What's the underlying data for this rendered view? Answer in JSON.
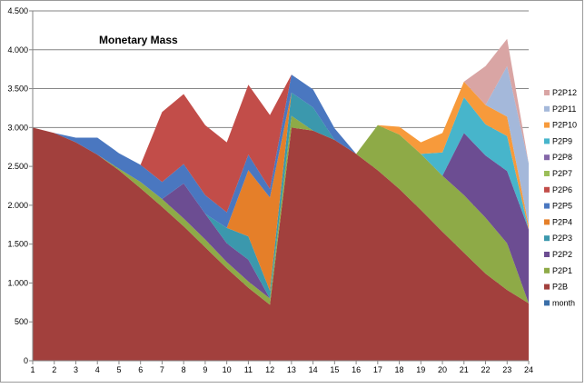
{
  "chart_data": {
    "type": "area",
    "stacked": true,
    "title": "Monetary Mass",
    "xlabel": "",
    "ylabel": "",
    "x": [
      1,
      2,
      3,
      4,
      5,
      6,
      7,
      8,
      9,
      10,
      11,
      12,
      13,
      14,
      15,
      16,
      17,
      18,
      19,
      20,
      21,
      22,
      23,
      24
    ],
    "ylim": [
      0,
      4500
    ],
    "yticks": [
      0,
      500,
      1000,
      1500,
      2000,
      2500,
      3000,
      3500,
      4000,
      4500
    ],
    "ytick_labels": [
      "0",
      "500",
      "1.000",
      "1.500",
      "2.000",
      "2.500",
      "3.000",
      "3.500",
      "4.000",
      "4.500"
    ],
    "grid": "horizontal",
    "legend_position": "right",
    "series": [
      {
        "name": "month",
        "color": "#3a6ea8",
        "values": [
          0,
          0,
          0,
          0,
          0,
          0,
          0,
          0,
          0,
          0,
          0,
          0,
          0,
          0,
          0,
          0,
          0,
          0,
          0,
          0,
          0,
          0,
          0,
          0
        ]
      },
      {
        "name": "P2B",
        "color": "#a2403d",
        "values": [
          3000,
          2930,
          2810,
          2650,
          2450,
          2220,
          1980,
          1730,
          1460,
          1190,
          940,
          720,
          3000,
          2960,
          2840,
          2660,
          2450,
          2210,
          1940,
          1660,
          1390,
          1120,
          910,
          740
        ]
      },
      {
        "name": "P2P1",
        "color": "#8eaa47",
        "values": [
          0,
          0,
          0,
          0,
          20,
          80,
          100,
          100,
          100,
          80,
          80,
          80,
          150,
          0,
          0,
          0,
          580,
          700,
          720,
          720,
          740,
          720,
          600,
          0
        ]
      },
      {
        "name": "P2P2",
        "color": "#6c4d92",
        "values": [
          0,
          0,
          0,
          0,
          0,
          0,
          0,
          450,
          330,
          240,
          280,
          0,
          0,
          0,
          0,
          0,
          0,
          0,
          0,
          0,
          800,
          800,
          930,
          950
        ]
      },
      {
        "name": "P2P3",
        "color": "#3b98ad",
        "values": [
          0,
          0,
          0,
          0,
          0,
          0,
          0,
          0,
          0,
          200,
          300,
          100,
          300,
          300,
          0,
          0,
          0,
          0,
          0,
          0,
          0,
          0,
          0,
          0
        ]
      },
      {
        "name": "P2P4",
        "color": "#e57f29",
        "values": [
          0,
          0,
          0,
          0,
          0,
          0,
          0,
          0,
          0,
          0,
          850,
          1200,
          0,
          0,
          0,
          0,
          0,
          0,
          0,
          0,
          0,
          0,
          0,
          0
        ]
      },
      {
        "name": "P2P5",
        "color": "#4a77c0",
        "values": [
          0,
          0,
          60,
          220,
          200,
          220,
          220,
          250,
          240,
          200,
          200,
          110,
          230,
          230,
          150,
          0,
          0,
          0,
          0,
          0,
          0,
          0,
          0,
          0
        ]
      },
      {
        "name": "P2P6",
        "color": "#c24d49",
        "values": [
          0,
          0,
          0,
          0,
          0,
          0,
          900,
          900,
          900,
          900,
          900,
          950,
          0,
          0,
          0,
          0,
          0,
          0,
          0,
          0,
          0,
          0,
          0,
          0
        ]
      },
      {
        "name": "P2P7",
        "color": "#9bbe58",
        "values": [
          0,
          0,
          0,
          0,
          0,
          0,
          0,
          0,
          0,
          0,
          0,
          0,
          0,
          0,
          0,
          0,
          0,
          0,
          0,
          0,
          0,
          0,
          0,
          0
        ]
      },
      {
        "name": "P2P8",
        "color": "#8467a8",
        "values": [
          0,
          0,
          0,
          0,
          0,
          0,
          0,
          0,
          0,
          0,
          0,
          0,
          0,
          0,
          0,
          0,
          0,
          0,
          0,
          0,
          0,
          0,
          0,
          0
        ]
      },
      {
        "name": "P2P9",
        "color": "#47b5cb",
        "values": [
          0,
          0,
          0,
          0,
          0,
          0,
          0,
          0,
          0,
          0,
          0,
          0,
          0,
          0,
          0,
          0,
          0,
          0,
          0,
          300,
          460,
          400,
          450,
          0
        ]
      },
      {
        "name": "P2P10",
        "color": "#f79a3b",
        "values": [
          0,
          0,
          0,
          0,
          0,
          0,
          0,
          0,
          0,
          0,
          0,
          0,
          0,
          0,
          0,
          0,
          0,
          100,
          150,
          250,
          200,
          250,
          250,
          50
        ]
      },
      {
        "name": "P2P11",
        "color": "#a4b8da",
        "values": [
          0,
          0,
          0,
          0,
          0,
          0,
          0,
          0,
          0,
          0,
          0,
          0,
          0,
          0,
          0,
          0,
          0,
          0,
          0,
          0,
          0,
          0,
          650,
          800
        ]
      },
      {
        "name": "P2P12",
        "color": "#d9a5a4",
        "values": [
          0,
          0,
          0,
          0,
          0,
          0,
          0,
          0,
          0,
          0,
          0,
          0,
          0,
          0,
          0,
          0,
          0,
          0,
          0,
          0,
          0,
          500,
          350,
          0
        ]
      }
    ]
  }
}
